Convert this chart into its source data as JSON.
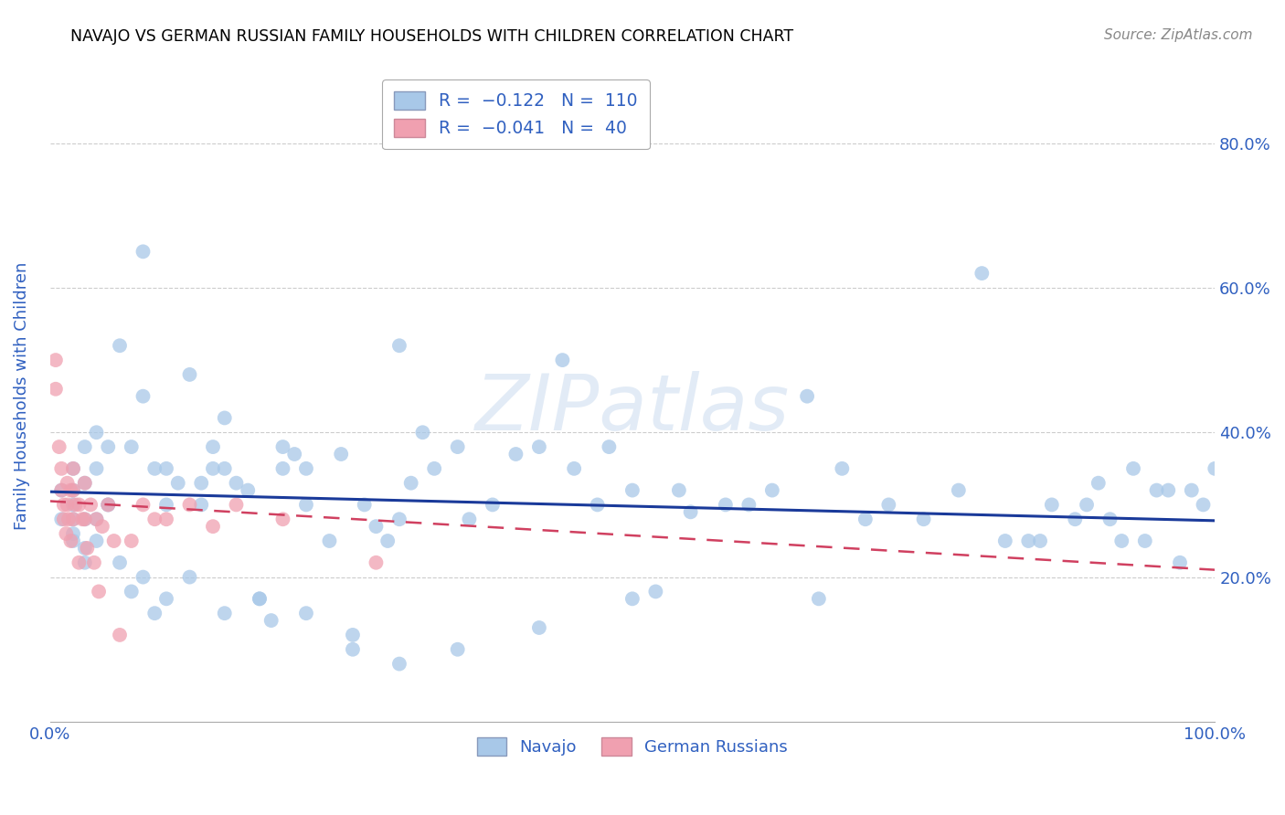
{
  "title": "NAVAJO VS GERMAN RUSSIAN FAMILY HOUSEHOLDS WITH CHILDREN CORRELATION CHART",
  "source": "Source: ZipAtlas.com",
  "ylabel": "Family Households with Children",
  "watermark": "ZIPatlas",
  "xlim": [
    0.0,
    1.0
  ],
  "ylim": [
    0.0,
    0.9
  ],
  "navajo_color": "#a8c8e8",
  "german_color": "#f0a0b0",
  "navajo_line_color": "#1a3a9a",
  "german_line_color": "#d04060",
  "grid_color": "#cccccc",
  "title_color": "#000000",
  "axis_label_color": "#3060c0",
  "tick_label_color": "#3060c0",
  "background_color": "#ffffff",
  "navajo_x": [
    0.01,
    0.01,
    0.02,
    0.02,
    0.02,
    0.02,
    0.02,
    0.03,
    0.03,
    0.03,
    0.03,
    0.04,
    0.04,
    0.04,
    0.05,
    0.05,
    0.06,
    0.07,
    0.08,
    0.08,
    0.09,
    0.1,
    0.1,
    0.11,
    0.12,
    0.13,
    0.13,
    0.14,
    0.14,
    0.15,
    0.15,
    0.16,
    0.17,
    0.18,
    0.19,
    0.2,
    0.2,
    0.21,
    0.22,
    0.22,
    0.24,
    0.25,
    0.26,
    0.27,
    0.28,
    0.29,
    0.3,
    0.3,
    0.31,
    0.32,
    0.33,
    0.35,
    0.36,
    0.38,
    0.4,
    0.42,
    0.44,
    0.45,
    0.47,
    0.48,
    0.5,
    0.52,
    0.54,
    0.55,
    0.58,
    0.6,
    0.62,
    0.65,
    0.66,
    0.68,
    0.7,
    0.72,
    0.75,
    0.78,
    0.8,
    0.82,
    0.84,
    0.85,
    0.86,
    0.88,
    0.89,
    0.9,
    0.91,
    0.92,
    0.93,
    0.94,
    0.95,
    0.96,
    0.97,
    0.98,
    0.99,
    1.0,
    0.02,
    0.03,
    0.04,
    0.05,
    0.06,
    0.07,
    0.08,
    0.09,
    0.1,
    0.12,
    0.15,
    0.18,
    0.22,
    0.26,
    0.3,
    0.35,
    0.42,
    0.5
  ],
  "navajo_y": [
    0.32,
    0.28,
    0.35,
    0.32,
    0.3,
    0.28,
    0.26,
    0.38,
    0.33,
    0.28,
    0.24,
    0.4,
    0.35,
    0.28,
    0.38,
    0.3,
    0.52,
    0.38,
    0.65,
    0.45,
    0.35,
    0.35,
    0.3,
    0.33,
    0.48,
    0.33,
    0.3,
    0.38,
    0.35,
    0.42,
    0.35,
    0.33,
    0.32,
    0.17,
    0.14,
    0.38,
    0.35,
    0.37,
    0.35,
    0.3,
    0.25,
    0.37,
    0.1,
    0.3,
    0.27,
    0.25,
    0.52,
    0.28,
    0.33,
    0.4,
    0.35,
    0.38,
    0.28,
    0.3,
    0.37,
    0.38,
    0.5,
    0.35,
    0.3,
    0.38,
    0.32,
    0.18,
    0.32,
    0.29,
    0.3,
    0.3,
    0.32,
    0.45,
    0.17,
    0.35,
    0.28,
    0.3,
    0.28,
    0.32,
    0.62,
    0.25,
    0.25,
    0.25,
    0.3,
    0.28,
    0.3,
    0.33,
    0.28,
    0.25,
    0.35,
    0.25,
    0.32,
    0.32,
    0.22,
    0.32,
    0.3,
    0.35,
    0.25,
    0.22,
    0.25,
    0.3,
    0.22,
    0.18,
    0.2,
    0.15,
    0.17,
    0.2,
    0.15,
    0.17,
    0.15,
    0.12,
    0.08,
    0.1,
    0.13,
    0.17
  ],
  "german_x": [
    0.005,
    0.005,
    0.008,
    0.01,
    0.01,
    0.012,
    0.012,
    0.014,
    0.015,
    0.015,
    0.016,
    0.018,
    0.018,
    0.02,
    0.02,
    0.02,
    0.022,
    0.025,
    0.025,
    0.028,
    0.03,
    0.03,
    0.032,
    0.035,
    0.038,
    0.04,
    0.042,
    0.045,
    0.05,
    0.055,
    0.06,
    0.07,
    0.08,
    0.09,
    0.1,
    0.12,
    0.14,
    0.16,
    0.2,
    0.28
  ],
  "german_y": [
    0.5,
    0.46,
    0.38,
    0.35,
    0.32,
    0.3,
    0.28,
    0.26,
    0.33,
    0.3,
    0.28,
    0.32,
    0.25,
    0.35,
    0.32,
    0.28,
    0.3,
    0.3,
    0.22,
    0.28,
    0.33,
    0.28,
    0.24,
    0.3,
    0.22,
    0.28,
    0.18,
    0.27,
    0.3,
    0.25,
    0.12,
    0.25,
    0.3,
    0.28,
    0.28,
    0.3,
    0.27,
    0.3,
    0.28,
    0.22
  ],
  "navajo_line_start_y": 0.318,
  "navajo_line_end_y": 0.278,
  "german_line_start_y": 0.305,
  "german_line_end_y": 0.21
}
